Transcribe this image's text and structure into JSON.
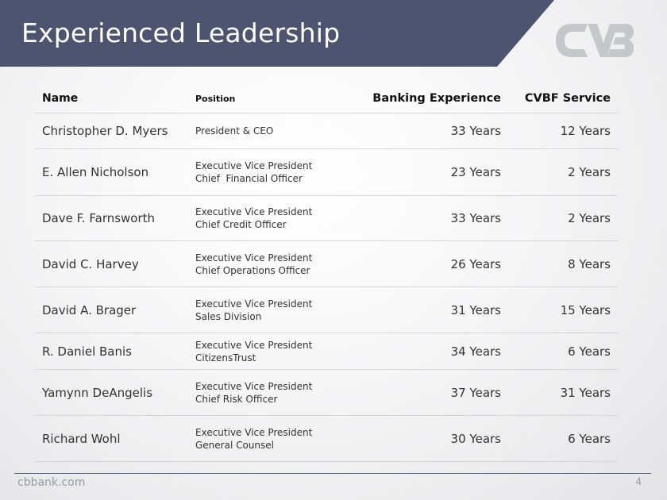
{
  "header": {
    "title": "Experienced Leadership",
    "band_color": "#4c5470",
    "logo_color": "#c5c7ca"
  },
  "table": {
    "columns": {
      "name": "Name",
      "position": "Position",
      "banking_experience": "Banking Experience",
      "cvbf_service": "CVBF Service"
    },
    "rows": [
      {
        "name": "Christopher D. Myers",
        "position": [
          "President & CEO"
        ],
        "banking_experience": "33 Years",
        "cvbf_service": "12 Years"
      },
      {
        "name": "E. Allen Nicholson",
        "position": [
          "Executive Vice President",
          "Chief  Financial Officer"
        ],
        "banking_experience": "23 Years",
        "cvbf_service": "2 Years"
      },
      {
        "name": "Dave F. Farnsworth",
        "position": [
          "Executive Vice President",
          "Chief Credit Officer"
        ],
        "banking_experience": "33 Years",
        "cvbf_service": "2 Years"
      },
      {
        "name": "David C. Harvey",
        "position": [
          "Executive Vice President",
          "Chief Operations Officer"
        ],
        "banking_experience": "26 Years",
        "cvbf_service": "8 Years"
      },
      {
        "name": "David A. Brager",
        "position": [
          "Executive Vice President",
          "Sales Division"
        ],
        "banking_experience": "31 Years",
        "cvbf_service": "15 Years"
      },
      {
        "name": "R. Daniel Banis",
        "position": [
          "Executive Vice President",
          "CitizensTrust"
        ],
        "banking_experience": "34 Years",
        "cvbf_service": "6 Years"
      },
      {
        "name": "Yamynn DeAngelis",
        "position": [
          "Executive Vice President",
          "Chief Risk Officer"
        ],
        "banking_experience": "37 Years",
        "cvbf_service": "31 Years"
      },
      {
        "name": "Richard Wohl",
        "position": [
          "Executive Vice President",
          "General Counsel"
        ],
        "banking_experience": "30 Years",
        "cvbf_service": "6 Years"
      }
    ]
  },
  "footer": {
    "url": "cbbank.com",
    "page_number": "4"
  }
}
